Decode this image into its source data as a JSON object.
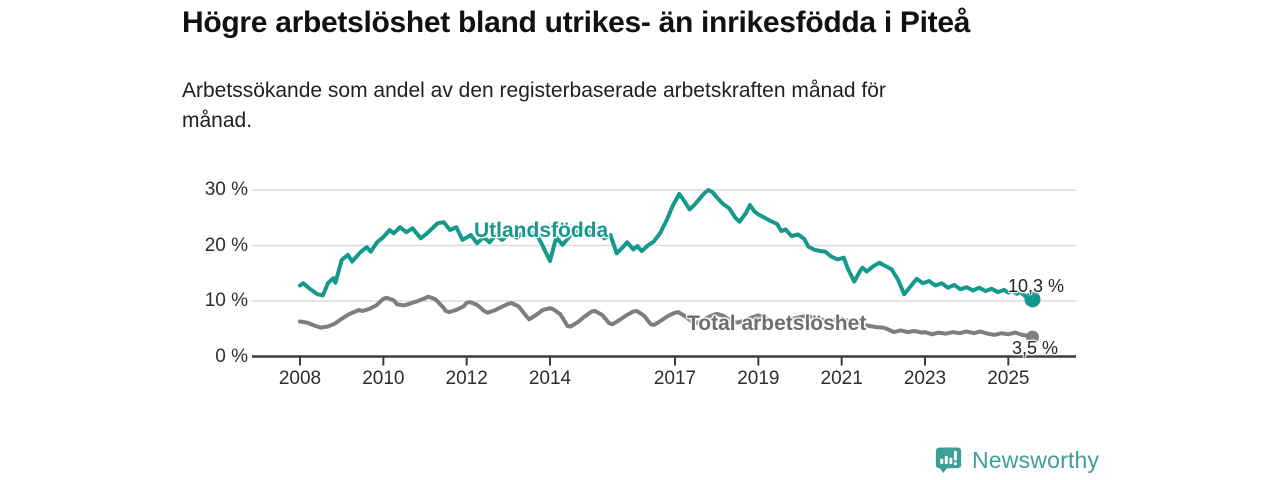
{
  "header": {
    "title": "Högre arbetslöshet bland utrikes- än inrikesfödda i Piteå",
    "subtitle": "Arbetssökande som andel av den registerbaserade arbetskraften månad för\nmånad."
  },
  "branding": {
    "logo_text": "Newsworthy",
    "logo_color": "#3d9f98",
    "logo_icon": "bar-chart-speech-bubble-icon"
  },
  "chart_data": {
    "type": "line",
    "title": "",
    "xlabel": "",
    "ylabel": "",
    "ylim": [
      0,
      30
    ],
    "xlim": [
      2008,
      2025.6
    ],
    "grid": "horizontal",
    "y_ticks": [
      {
        "label": "30 %",
        "value": 30
      },
      {
        "label": "20 %",
        "value": 20
      },
      {
        "label": "10 %",
        "value": 10
      },
      {
        "label": "0 %",
        "value": 0
      }
    ],
    "x_ticks": [
      {
        "label": "2008",
        "year": 2008
      },
      {
        "label": "2010",
        "year": 2010
      },
      {
        "label": "2012",
        "year": 2012
      },
      {
        "label": "2014",
        "year": 2014
      },
      {
        "label": "2017",
        "year": 2017
      },
      {
        "label": "2019",
        "year": 2019
      },
      {
        "label": "2021",
        "year": 2021
      },
      {
        "label": "2023",
        "year": 2023
      },
      {
        "label": "2025",
        "year": 2025
      }
    ],
    "colors": {
      "utlandsfodda": "#14998c",
      "total": "#7e7e7e",
      "grid": "#dcdcdc",
      "axis": "#3d3d3d"
    },
    "series": [
      {
        "name": "Utlandsfödda",
        "end_label": "10,3 %",
        "end_value": 10.3,
        "color": "#14998c",
        "points": [
          [
            2008.0,
            12.8
          ],
          [
            2008.08,
            13.2
          ],
          [
            2008.17,
            12.6
          ],
          [
            2008.25,
            12.1
          ],
          [
            2008.42,
            11.2
          ],
          [
            2008.55,
            11.0
          ],
          [
            2008.67,
            13.2
          ],
          [
            2008.8,
            14.1
          ],
          [
            2008.85,
            13.3
          ],
          [
            2009.0,
            17.4
          ],
          [
            2009.15,
            18.3
          ],
          [
            2009.25,
            17.1
          ],
          [
            2009.45,
            18.8
          ],
          [
            2009.6,
            19.7
          ],
          [
            2009.7,
            18.9
          ],
          [
            2009.85,
            20.6
          ],
          [
            2010.0,
            21.5
          ],
          [
            2010.15,
            22.8
          ],
          [
            2010.25,
            22.2
          ],
          [
            2010.4,
            23.3
          ],
          [
            2010.55,
            22.4
          ],
          [
            2010.7,
            23.1
          ],
          [
            2010.9,
            21.3
          ],
          [
            2011.05,
            22.2
          ],
          [
            2011.3,
            24.0
          ],
          [
            2011.45,
            24.2
          ],
          [
            2011.6,
            22.8
          ],
          [
            2011.75,
            23.3
          ],
          [
            2011.9,
            21.0
          ],
          [
            2012.1,
            21.9
          ],
          [
            2012.25,
            20.4
          ],
          [
            2012.4,
            21.5
          ],
          [
            2012.55,
            20.6
          ],
          [
            2012.7,
            21.9
          ],
          [
            2012.85,
            21.0
          ],
          [
            2013.05,
            22.2
          ],
          [
            2013.2,
            21.4
          ],
          [
            2013.35,
            22.4
          ],
          [
            2013.5,
            21.9
          ],
          [
            2013.65,
            22.4
          ],
          [
            2013.8,
            20.3
          ],
          [
            2014.0,
            17.2
          ],
          [
            2014.15,
            21.5
          ],
          [
            2014.3,
            20.1
          ],
          [
            2014.5,
            21.9
          ],
          [
            2014.65,
            22.4
          ],
          [
            2014.8,
            23.1
          ],
          [
            2015.0,
            22.2
          ],
          [
            2015.15,
            22.8
          ],
          [
            2015.3,
            21.3
          ],
          [
            2015.45,
            21.9
          ],
          [
            2015.6,
            18.6
          ],
          [
            2015.75,
            19.7
          ],
          [
            2015.85,
            20.6
          ],
          [
            2016.0,
            19.3
          ],
          [
            2016.1,
            19.9
          ],
          [
            2016.2,
            19.0
          ],
          [
            2016.35,
            20.0
          ],
          [
            2016.5,
            20.8
          ],
          [
            2016.65,
            22.3
          ],
          [
            2016.8,
            24.6
          ],
          [
            2016.95,
            27.2
          ],
          [
            2017.1,
            29.3
          ],
          [
            2017.2,
            28.3
          ],
          [
            2017.35,
            26.5
          ],
          [
            2017.45,
            27.2
          ],
          [
            2017.6,
            28.5
          ],
          [
            2017.7,
            29.4
          ],
          [
            2017.8,
            30.0
          ],
          [
            2017.9,
            29.6
          ],
          [
            2018.0,
            28.7
          ],
          [
            2018.15,
            27.5
          ],
          [
            2018.3,
            26.7
          ],
          [
            2018.45,
            25.0
          ],
          [
            2018.55,
            24.3
          ],
          [
            2018.7,
            25.8
          ],
          [
            2018.8,
            27.3
          ],
          [
            2018.9,
            26.2
          ],
          [
            2019.0,
            25.6
          ],
          [
            2019.15,
            25.0
          ],
          [
            2019.3,
            24.4
          ],
          [
            2019.45,
            23.9
          ],
          [
            2019.55,
            22.6
          ],
          [
            2019.65,
            22.9
          ],
          [
            2019.8,
            21.7
          ],
          [
            2019.95,
            22.0
          ],
          [
            2020.1,
            21.2
          ],
          [
            2020.2,
            19.8
          ],
          [
            2020.35,
            19.2
          ],
          [
            2020.5,
            19.0
          ],
          [
            2020.6,
            18.9
          ],
          [
            2020.75,
            18.0
          ],
          [
            2020.9,
            17.5
          ],
          [
            2021.05,
            17.8
          ],
          [
            2021.15,
            15.8
          ],
          [
            2021.3,
            13.5
          ],
          [
            2021.45,
            15.5
          ],
          [
            2021.5,
            16.0
          ],
          [
            2021.6,
            15.3
          ],
          [
            2021.75,
            16.2
          ],
          [
            2021.9,
            16.9
          ],
          [
            2022.05,
            16.3
          ],
          [
            2022.2,
            15.7
          ],
          [
            2022.35,
            13.9
          ],
          [
            2022.5,
            11.2
          ],
          [
            2022.65,
            12.6
          ],
          [
            2022.8,
            14.0
          ],
          [
            2022.95,
            13.2
          ],
          [
            2023.1,
            13.6
          ],
          [
            2023.25,
            12.8
          ],
          [
            2023.4,
            13.2
          ],
          [
            2023.55,
            12.4
          ],
          [
            2023.7,
            12.9
          ],
          [
            2023.85,
            12.1
          ],
          [
            2024.0,
            12.5
          ],
          [
            2024.15,
            11.9
          ],
          [
            2024.3,
            12.4
          ],
          [
            2024.45,
            11.8
          ],
          [
            2024.6,
            12.2
          ],
          [
            2024.75,
            11.6
          ],
          [
            2024.9,
            12.0
          ],
          [
            2025.0,
            11.5
          ],
          [
            2025.1,
            11.9
          ],
          [
            2025.2,
            11.3
          ],
          [
            2025.3,
            11.6
          ],
          [
            2025.4,
            10.9
          ],
          [
            2025.5,
            10.6
          ],
          [
            2025.58,
            10.3
          ]
        ]
      },
      {
        "name": "Total arbetslöshet",
        "end_label": "3,5 %",
        "end_value": 3.5,
        "color": "#7e7e7e",
        "points": [
          [
            2008.0,
            6.3
          ],
          [
            2008.17,
            6.1
          ],
          [
            2008.33,
            5.6
          ],
          [
            2008.5,
            5.2
          ],
          [
            2008.67,
            5.4
          ],
          [
            2008.83,
            5.9
          ],
          [
            2009.0,
            6.8
          ],
          [
            2009.17,
            7.6
          ],
          [
            2009.33,
            8.1
          ],
          [
            2009.42,
            8.4
          ],
          [
            2009.5,
            8.2
          ],
          [
            2009.67,
            8.6
          ],
          [
            2009.83,
            9.2
          ],
          [
            2010.0,
            10.4
          ],
          [
            2010.08,
            10.6
          ],
          [
            2010.25,
            10.1
          ],
          [
            2010.33,
            9.4
          ],
          [
            2010.5,
            9.2
          ],
          [
            2010.67,
            9.6
          ],
          [
            2010.83,
            10.0
          ],
          [
            2011.0,
            10.5
          ],
          [
            2011.08,
            10.8
          ],
          [
            2011.25,
            10.3
          ],
          [
            2011.42,
            9.0
          ],
          [
            2011.5,
            8.2
          ],
          [
            2011.58,
            8.0
          ],
          [
            2011.75,
            8.4
          ],
          [
            2011.92,
            9.0
          ],
          [
            2012.0,
            9.7
          ],
          [
            2012.08,
            9.8
          ],
          [
            2012.25,
            9.3
          ],
          [
            2012.42,
            8.2
          ],
          [
            2012.5,
            7.9
          ],
          [
            2012.67,
            8.3
          ],
          [
            2012.83,
            8.9
          ],
          [
            2013.0,
            9.5
          ],
          [
            2013.08,
            9.6
          ],
          [
            2013.25,
            9.0
          ],
          [
            2013.42,
            7.4
          ],
          [
            2013.5,
            6.7
          ],
          [
            2013.67,
            7.5
          ],
          [
            2013.83,
            8.4
          ],
          [
            2014.0,
            8.7
          ],
          [
            2014.08,
            8.5
          ],
          [
            2014.25,
            7.6
          ],
          [
            2014.42,
            5.5
          ],
          [
            2014.5,
            5.4
          ],
          [
            2014.67,
            6.2
          ],
          [
            2014.83,
            7.2
          ],
          [
            2015.0,
            8.1
          ],
          [
            2015.08,
            8.2
          ],
          [
            2015.25,
            7.5
          ],
          [
            2015.42,
            6.0
          ],
          [
            2015.5,
            5.8
          ],
          [
            2015.67,
            6.6
          ],
          [
            2015.83,
            7.4
          ],
          [
            2016.0,
            8.1
          ],
          [
            2016.08,
            8.2
          ],
          [
            2016.25,
            7.4
          ],
          [
            2016.42,
            5.8
          ],
          [
            2016.5,
            5.7
          ],
          [
            2016.67,
            6.5
          ],
          [
            2016.83,
            7.3
          ],
          [
            2017.0,
            7.9
          ],
          [
            2017.08,
            8.0
          ],
          [
            2017.25,
            7.2
          ],
          [
            2017.42,
            6.2
          ],
          [
            2017.5,
            6.0
          ],
          [
            2017.67,
            6.6
          ],
          [
            2017.83,
            7.2
          ],
          [
            2018.0,
            7.7
          ],
          [
            2018.17,
            7.3
          ],
          [
            2018.33,
            6.5
          ],
          [
            2018.5,
            6.1
          ],
          [
            2018.67,
            6.5
          ],
          [
            2018.83,
            7.0
          ],
          [
            2019.0,
            7.4
          ],
          [
            2019.17,
            7.0
          ],
          [
            2019.33,
            6.3
          ],
          [
            2019.5,
            6.0
          ],
          [
            2019.67,
            6.3
          ],
          [
            2019.83,
            6.8
          ],
          [
            2020.0,
            7.1
          ],
          [
            2020.17,
            7.3
          ],
          [
            2020.33,
            7.0
          ],
          [
            2020.5,
            6.7
          ],
          [
            2020.67,
            6.4
          ],
          [
            2020.83,
            6.6
          ],
          [
            2021.0,
            6.8
          ],
          [
            2021.17,
            6.4
          ],
          [
            2021.33,
            6.0
          ],
          [
            2021.5,
            5.7
          ],
          [
            2021.67,
            5.5
          ],
          [
            2021.83,
            5.3
          ],
          [
            2022.0,
            5.2
          ],
          [
            2022.08,
            5.0
          ],
          [
            2022.25,
            4.4
          ],
          [
            2022.42,
            4.7
          ],
          [
            2022.58,
            4.4
          ],
          [
            2022.75,
            4.6
          ],
          [
            2022.92,
            4.3
          ],
          [
            2023.0,
            4.4
          ],
          [
            2023.17,
            4.0
          ],
          [
            2023.33,
            4.3
          ],
          [
            2023.5,
            4.1
          ],
          [
            2023.67,
            4.4
          ],
          [
            2023.83,
            4.2
          ],
          [
            2024.0,
            4.5
          ],
          [
            2024.17,
            4.2
          ],
          [
            2024.33,
            4.5
          ],
          [
            2024.5,
            4.1
          ],
          [
            2024.67,
            3.9
          ],
          [
            2024.83,
            4.2
          ],
          [
            2025.0,
            4.0
          ],
          [
            2025.17,
            4.3
          ],
          [
            2025.33,
            3.9
          ],
          [
            2025.5,
            3.7
          ],
          [
            2025.58,
            3.5
          ]
        ]
      }
    ]
  }
}
